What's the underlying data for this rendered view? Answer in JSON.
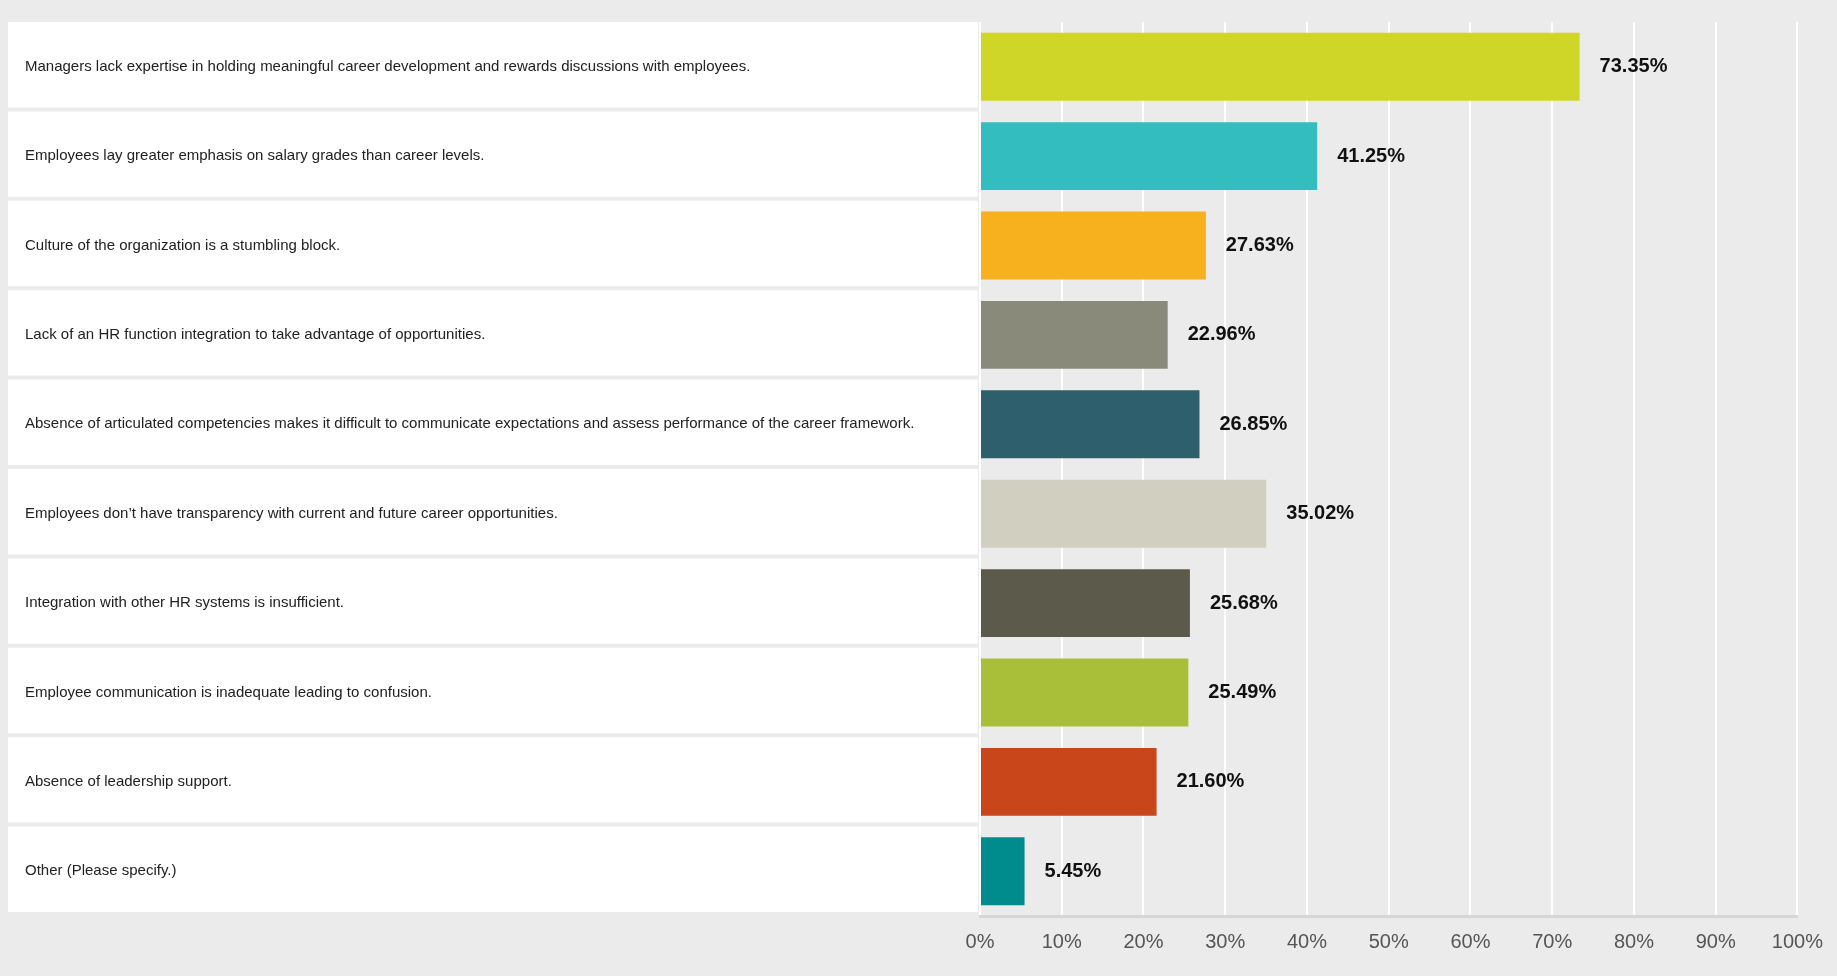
{
  "chart_data": {
    "type": "bar",
    "orientation": "horizontal",
    "categories": [
      "Managers lack expertise in holding meaningful career development and rewards discussions with employees.",
      "Employees lay greater emphasis on salary grades than career levels.",
      "Culture of the organization is a stumbling block.",
      "Lack of an HR function integration to take advantage of opportunities.",
      "Absence of articulated competencies makes it difficult to communicate expectations and assess performance of the career framework.",
      "Employees don’t have transparency with current and future career opportunities.",
      "Integration with other HR systems is insufficient.",
      "Employee communication is inadequate leading to confusion.",
      "Absence of leadership support.",
      "Other (Please specify.)"
    ],
    "values": [
      73.35,
      41.25,
      27.63,
      22.96,
      26.85,
      35.02,
      25.68,
      25.49,
      21.6,
      5.45
    ],
    "value_labels": [
      "73.35%",
      "41.25%",
      "27.63%",
      "22.96%",
      "26.85%",
      "35.02%",
      "25.68%",
      "25.49%",
      "21.60%",
      "5.45%"
    ],
    "colors": [
      "#cfd628",
      "#33bdbf",
      "#f7b01e",
      "#8a8a7a",
      "#2d5f6d",
      "#d0cfc0",
      "#5b5a4b",
      "#a9bf3a",
      "#c9461b",
      "#008c8c"
    ],
    "xlim": [
      0,
      100
    ],
    "xticks": [
      {
        "value": 0,
        "label": "0%"
      },
      {
        "value": 10,
        "label": "10%"
      },
      {
        "value": 20,
        "label": "20%"
      },
      {
        "value": 30,
        "label": "30%"
      },
      {
        "value": 40,
        "label": "40%"
      },
      {
        "value": 50,
        "label": "50%"
      },
      {
        "value": 60,
        "label": "60%"
      },
      {
        "value": 70,
        "label": "70%"
      },
      {
        "value": 80,
        "label": "80%"
      },
      {
        "value": 90,
        "label": "90%"
      },
      {
        "value": 100,
        "label": "100%"
      }
    ],
    "grid": "x"
  }
}
